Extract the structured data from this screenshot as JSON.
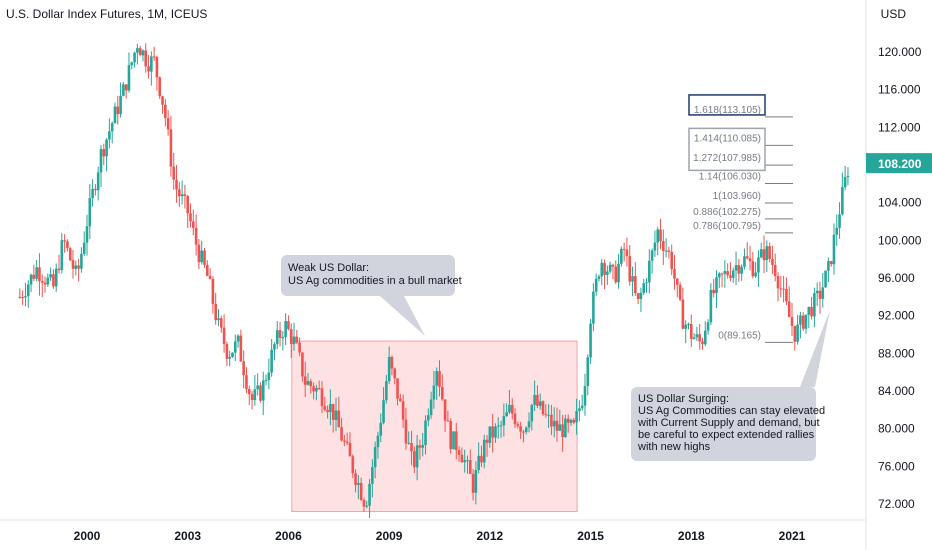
{
  "chart_data": {
    "type": "candlestick",
    "title": "U.S. Dollar Index Futures, 1M, ICEUS",
    "currency": "USD",
    "x_ticks": [
      "2000",
      "2003",
      "2006",
      "2009",
      "2012",
      "2015",
      "2018",
      "2021"
    ],
    "y_ticks": [
      "72.000",
      "76.000",
      "80.000",
      "84.000",
      "88.000",
      "92.000",
      "96.000",
      "100.000",
      "104.000",
      "108.000",
      "112.000",
      "116.000",
      "120.000"
    ],
    "y_range": [
      70,
      124
    ],
    "x_range": [
      1998.0,
      2022.8
    ],
    "last_price": "108.200",
    "colors": {
      "up": "#26a69a",
      "down": "#ef5350",
      "last": "#26a69a"
    },
    "path_points": [
      [
        1998.0,
        94
      ],
      [
        1998.5,
        97
      ],
      [
        1999.0,
        95
      ],
      [
        1999.3,
        100
      ],
      [
        1999.7,
        96
      ],
      [
        2000.0,
        102
      ],
      [
        2000.4,
        109
      ],
      [
        2000.8,
        113
      ],
      [
        2001.1,
        116
      ],
      [
        2001.5,
        121
      ],
      [
        2001.8,
        119
      ],
      [
        2002.0,
        119
      ],
      [
        2002.3,
        114
      ],
      [
        2002.6,
        106
      ],
      [
        2003.0,
        103
      ],
      [
        2003.3,
        99
      ],
      [
        2003.6,
        96
      ],
      [
        2003.9,
        91
      ],
      [
        2004.2,
        88
      ],
      [
        2004.5,
        89
      ],
      [
        2004.9,
        83
      ],
      [
        2005.2,
        84
      ],
      [
        2005.6,
        89
      ],
      [
        2005.9,
        91
      ],
      [
        2006.2,
        89
      ],
      [
        2006.5,
        85
      ],
      [
        2006.9,
        84
      ],
      [
        2007.3,
        82
      ],
      [
        2007.7,
        78
      ],
      [
        2008.0,
        75
      ],
      [
        2008.3,
        72
      ],
      [
        2008.7,
        80
      ],
      [
        2009.0,
        87
      ],
      [
        2009.3,
        83
      ],
      [
        2009.7,
        76
      ],
      [
        2010.0,
        79
      ],
      [
        2010.4,
        87
      ],
      [
        2010.8,
        79
      ],
      [
        2011.1,
        78
      ],
      [
        2011.5,
        74
      ],
      [
        2011.9,
        79
      ],
      [
        2012.3,
        80
      ],
      [
        2012.6,
        82
      ],
      [
        2013.0,
        80
      ],
      [
        2013.3,
        83
      ],
      [
        2013.7,
        81
      ],
      [
        2014.0,
        80
      ],
      [
        2014.5,
        80
      ],
      [
        2014.8,
        84
      ],
      [
        2015.0,
        92
      ],
      [
        2015.3,
        98
      ],
      [
        2015.7,
        96
      ],
      [
        2016.0,
        99
      ],
      [
        2016.4,
        93
      ],
      [
        2016.8,
        98
      ],
      [
        2017.0,
        101
      ],
      [
        2017.4,
        98
      ],
      [
        2017.7,
        92
      ],
      [
        2018.0,
        90
      ],
      [
        2018.3,
        89
      ],
      [
        2018.6,
        94
      ],
      [
        2018.9,
        96
      ],
      [
        2019.2,
        97
      ],
      [
        2019.6,
        98
      ],
      [
        2019.9,
        97
      ],
      [
        2020.2,
        99
      ],
      [
        2020.5,
        97
      ],
      [
        2020.9,
        92
      ],
      [
        2021.1,
        90
      ],
      [
        2021.4,
        92
      ],
      [
        2021.8,
        94
      ],
      [
        2022.1,
        97
      ],
      [
        2022.4,
        103
      ],
      [
        2022.7,
        108.2
      ]
    ],
    "fib_levels": [
      {
        "label": "1.618(113.105)",
        "value": 113.105
      },
      {
        "label": "1.414(110.085)",
        "value": 110.085
      },
      {
        "label": "1.272(107.985)",
        "value": 107.985
      },
      {
        "label": "1.14(106.030)",
        "value": 106.03
      },
      {
        "label": "1(103.960)",
        "value": 103.96
      },
      {
        "label": "0.886(102.275)",
        "value": 102.275
      },
      {
        "label": "0.786(100.795)",
        "value": 100.795
      },
      {
        "label": "0(89.165)",
        "value": 89.165
      }
    ],
    "shaded_region": {
      "x_start": 2006.1,
      "x_end": 2014.6,
      "y_low": 71.2,
      "y_high": 89.3
    },
    "annotations": [
      {
        "lines": [
          "Weak US Dollar:",
          "US Ag commodities in a bull market"
        ]
      },
      {
        "lines": [
          "US Dollar Surging:",
          "US Ag Commodities can stay elevated",
          "with Current Supply and demand, but",
          "be careful to expect extended rallies",
          "with new highs"
        ]
      }
    ]
  }
}
